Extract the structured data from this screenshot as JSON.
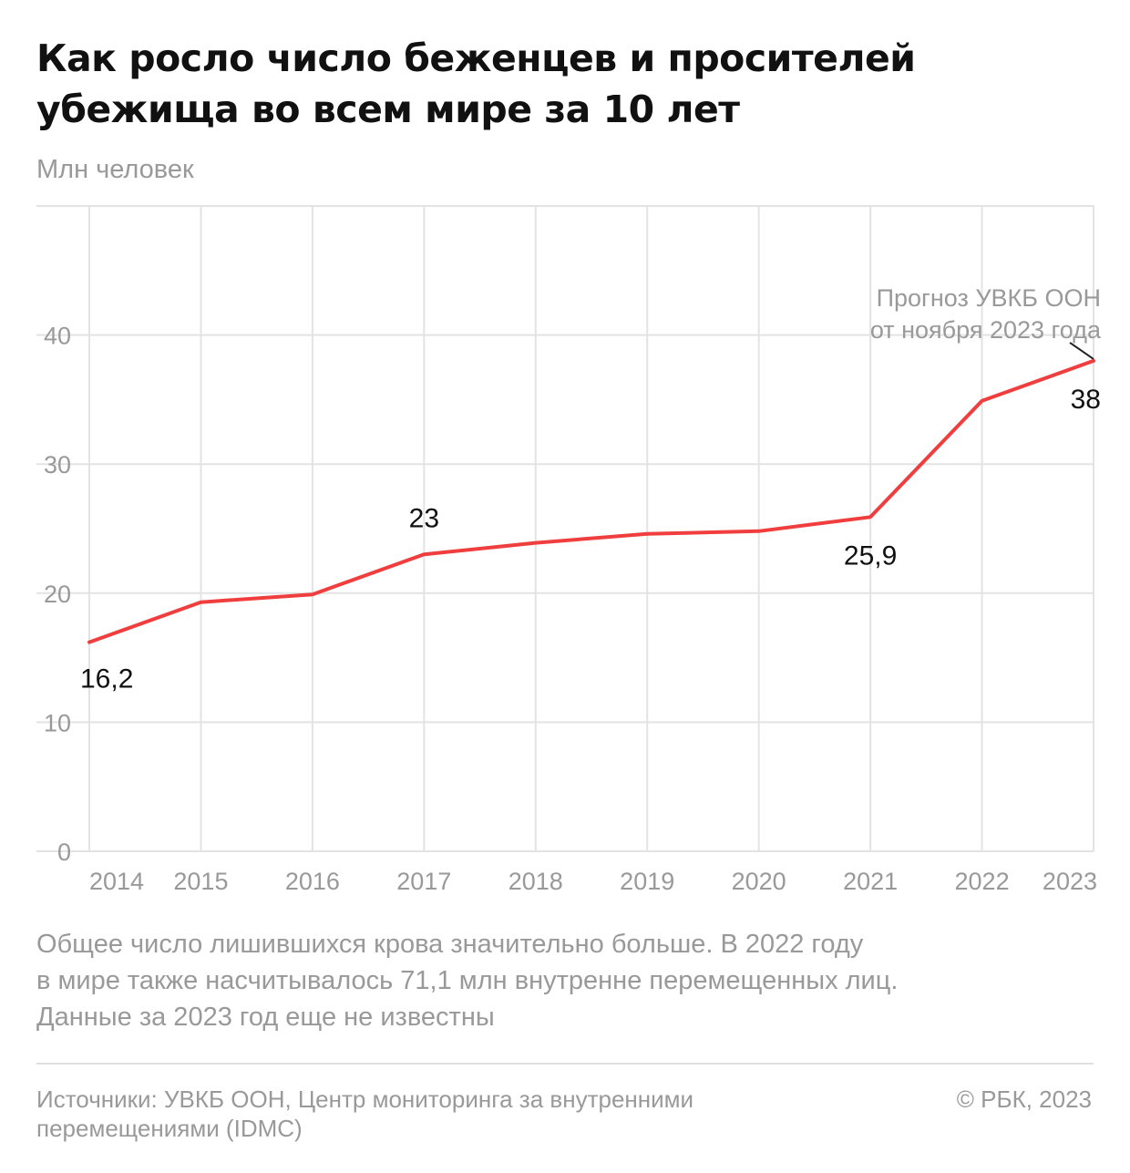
{
  "title_lines": [
    "Как росло число беженцев и просителей",
    "убежища во всем мире за 10 лет"
  ],
  "unit_label": "Млн человек",
  "chart_data": {
    "type": "line",
    "title": "Как росло число беженцев и просителей убежища во всем мире за 10 лет",
    "ylabel": "Млн человек",
    "xlabel": "",
    "x": [
      "2014",
      "2015",
      "2016",
      "2017",
      "2018",
      "2019",
      "2020",
      "2021",
      "2022",
      "2023"
    ],
    "series": [
      {
        "values": [
          16.2,
          19.3,
          19.9,
          23,
          23.9,
          24.6,
          24.8,
          25.9,
          34.9,
          38
        ]
      }
    ],
    "ylim": [
      0,
      50
    ],
    "yticks": [
      0,
      10,
      20,
      30,
      40
    ],
    "ytick_labels": [
      "0",
      "10",
      "20",
      "30",
      "40"
    ],
    "data_labels": [
      {
        "index": 0,
        "text": "16,2"
      },
      {
        "index": 3,
        "text": "23"
      },
      {
        "index": 7,
        "text": "25,9"
      },
      {
        "index": 9,
        "text": "38"
      }
    ],
    "annotation": {
      "index": 9,
      "lines": [
        "Прогноз УВКБ ООН",
        "от ноября 2023 года"
      ]
    },
    "grid": true,
    "line_color": "#f03e3e",
    "grid_color": "#e3e3e3",
    "axis_text_color": "#999999",
    "label_color": "#111111"
  },
  "note_lines": [
    "Общее число лишившихся крова значительно больше. В 2022 году",
    "в мире также насчитывалось 71,1 млн внутренне перемещенных лиц.",
    "Данные за 2023 год еще не известны"
  ],
  "source_lines": [
    "Источники: УВКБ ООН, Центр мониторинга за внутренними",
    "перемещениями (IDMC)"
  ],
  "copyright": "© РБК, 2023"
}
